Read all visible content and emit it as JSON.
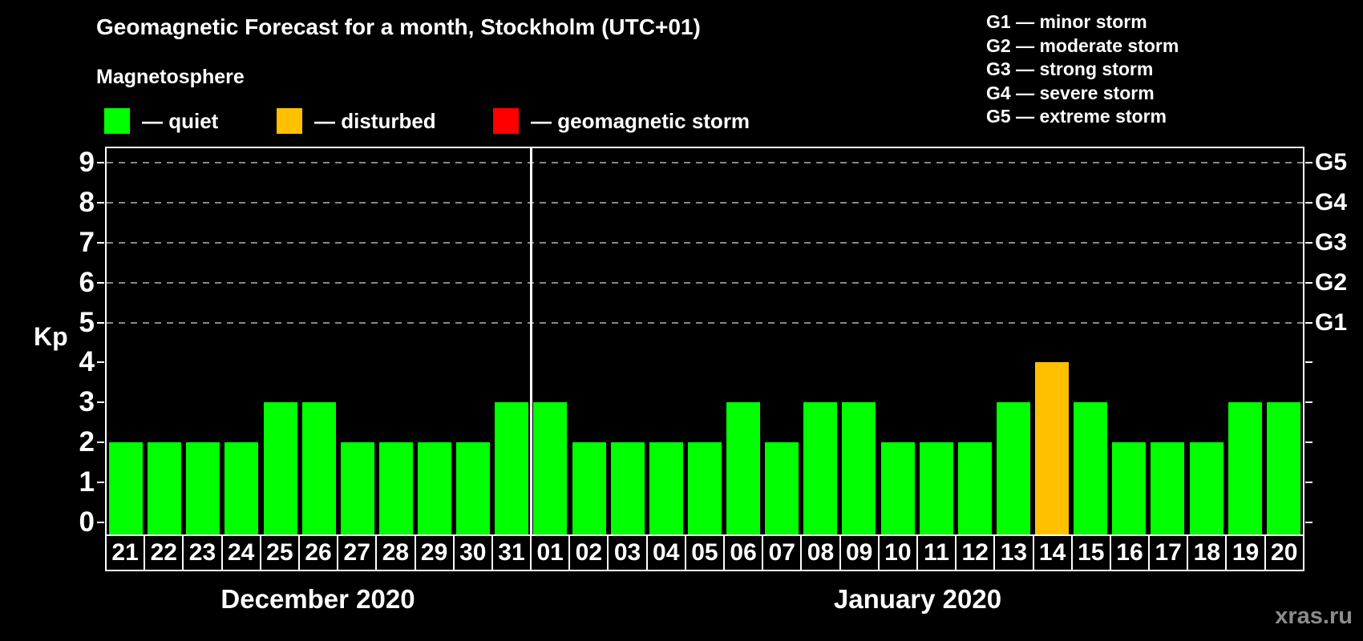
{
  "header": {
    "title": "Geomagnetic Forecast for a month, Stockholm (UTC+01)",
    "subtitle": "Magnetosphere"
  },
  "legend": {
    "items": [
      {
        "name": "quiet",
        "swatch_color": "#00ff00",
        "label": "— quiet"
      },
      {
        "name": "disturbed",
        "swatch_color": "#ffc000",
        "label": "— disturbed"
      },
      {
        "name": "geomagnetic-storm",
        "swatch_color": "#ff0000",
        "label": "— geomagnetic storm"
      }
    ]
  },
  "storm_scale_legend": [
    "G1 — minor storm",
    "G2 — moderate storm",
    "G3 — strong storm",
    "G4 — severe storm",
    "G5 — extreme storm"
  ],
  "axes": {
    "y_label": "Kp",
    "y_ticks": [
      0,
      1,
      2,
      3,
      4,
      5,
      6,
      7,
      8,
      9
    ],
    "right_axis_labels": [
      {
        "text": "G1",
        "kp": 5
      },
      {
        "text": "G2",
        "kp": 6
      },
      {
        "text": "G3",
        "kp": 7
      },
      {
        "text": "G4",
        "kp": 8
      },
      {
        "text": "G5",
        "kp": 9
      }
    ],
    "gridlines_kp": [
      5,
      6,
      7,
      8,
      9
    ]
  },
  "months": [
    {
      "label": "December 2020",
      "days": 11
    },
    {
      "label": "January 2020",
      "days": 20
    }
  ],
  "watermark": "xras.ru",
  "colors": {
    "quiet": "#00ff00",
    "disturbed": "#ffc000",
    "storm": "#ff0000",
    "grid": "#888888",
    "axis": "#ffffff",
    "background": "#000000"
  },
  "chart_data": {
    "type": "bar",
    "title": "Geomagnetic Forecast for a month, Stockholm (UTC+01)",
    "ylabel": "Kp",
    "ylim": [
      0,
      9
    ],
    "grid": "dashed horizontal at Kp 5-9 (G1-G5)",
    "legend_position": "top",
    "bars": [
      {
        "month": "December 2020",
        "day": "21",
        "kp": 2,
        "status": "quiet"
      },
      {
        "month": "December 2020",
        "day": "22",
        "kp": 2,
        "status": "quiet"
      },
      {
        "month": "December 2020",
        "day": "23",
        "kp": 2,
        "status": "quiet"
      },
      {
        "month": "December 2020",
        "day": "24",
        "kp": 2,
        "status": "quiet"
      },
      {
        "month": "December 2020",
        "day": "25",
        "kp": 3,
        "status": "quiet"
      },
      {
        "month": "December 2020",
        "day": "26",
        "kp": 3,
        "status": "quiet"
      },
      {
        "month": "December 2020",
        "day": "27",
        "kp": 2,
        "status": "quiet"
      },
      {
        "month": "December 2020",
        "day": "28",
        "kp": 2,
        "status": "quiet"
      },
      {
        "month": "December 2020",
        "day": "29",
        "kp": 2,
        "status": "quiet"
      },
      {
        "month": "December 2020",
        "day": "30",
        "kp": 2,
        "status": "quiet"
      },
      {
        "month": "December 2020",
        "day": "31",
        "kp": 3,
        "status": "quiet"
      },
      {
        "month": "January 2020",
        "day": "01",
        "kp": 3,
        "status": "quiet"
      },
      {
        "month": "January 2020",
        "day": "02",
        "kp": 2,
        "status": "quiet"
      },
      {
        "month": "January 2020",
        "day": "03",
        "kp": 2,
        "status": "quiet"
      },
      {
        "month": "January 2020",
        "day": "04",
        "kp": 2,
        "status": "quiet"
      },
      {
        "month": "January 2020",
        "day": "05",
        "kp": 2,
        "status": "quiet"
      },
      {
        "month": "January 2020",
        "day": "06",
        "kp": 3,
        "status": "quiet"
      },
      {
        "month": "January 2020",
        "day": "07",
        "kp": 2,
        "status": "quiet"
      },
      {
        "month": "January 2020",
        "day": "08",
        "kp": 3,
        "status": "quiet"
      },
      {
        "month": "January 2020",
        "day": "09",
        "kp": 3,
        "status": "quiet"
      },
      {
        "month": "January 2020",
        "day": "10",
        "kp": 2,
        "status": "quiet"
      },
      {
        "month": "January 2020",
        "day": "11",
        "kp": 2,
        "status": "quiet"
      },
      {
        "month": "January 2020",
        "day": "12",
        "kp": 2,
        "status": "quiet"
      },
      {
        "month": "January 2020",
        "day": "13",
        "kp": 3,
        "status": "quiet"
      },
      {
        "month": "January 2020",
        "day": "14",
        "kp": 4,
        "status": "disturbed"
      },
      {
        "month": "January 2020",
        "day": "15",
        "kp": 3,
        "status": "quiet"
      },
      {
        "month": "January 2020",
        "day": "16",
        "kp": 2,
        "status": "quiet"
      },
      {
        "month": "January 2020",
        "day": "17",
        "kp": 2,
        "status": "quiet"
      },
      {
        "month": "January 2020",
        "day": "18",
        "kp": 2,
        "status": "quiet"
      },
      {
        "month": "January 2020",
        "day": "19",
        "kp": 3,
        "status": "quiet"
      },
      {
        "month": "January 2020",
        "day": "20",
        "kp": 3,
        "status": "quiet"
      }
    ]
  }
}
